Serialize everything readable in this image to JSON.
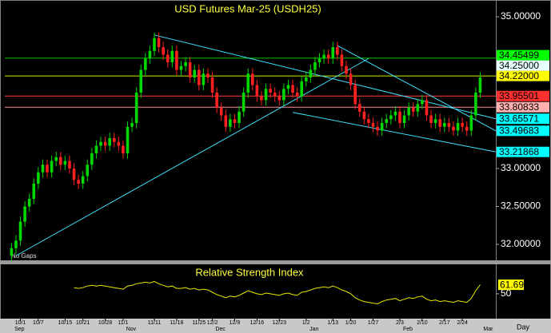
{
  "chart_data": [
    {
      "type": "candlestick",
      "title": "USD Futures Mar-25 (USDH25)",
      "note": "No Gaps",
      "period": "Day",
      "up_color": "#00d800",
      "down_color": "#ff2020",
      "xlim": [
        -1.5,
        108.5
      ],
      "ylim": [
        31.8,
        35.2
      ],
      "yticks": [
        {
          "value": 35,
          "label": "35.00000"
        },
        {
          "value": 33,
          "label": "33.00000"
        },
        {
          "value": 32.5,
          "label": "32.50000"
        },
        {
          "value": 32,
          "label": "32.00000"
        }
      ],
      "categories": [
        null,
        null,
        "10/1",
        null,
        null,
        null,
        "10/7",
        null,
        null,
        null,
        null,
        null,
        "10/15",
        null,
        null,
        null,
        "10/21",
        null,
        null,
        null,
        null,
        "10/28",
        null,
        null,
        null,
        "11/1",
        null,
        null,
        null,
        null,
        null,
        null,
        "11/11",
        null,
        null,
        null,
        null,
        "11/18",
        null,
        null,
        null,
        null,
        "11/25",
        null,
        null,
        "12/2",
        null,
        null,
        null,
        null,
        "12/9",
        null,
        null,
        null,
        null,
        "12/16",
        null,
        null,
        null,
        null,
        "12/23",
        null,
        null,
        null,
        null,
        null,
        "1/2",
        null,
        null,
        null,
        null,
        null,
        "1/13",
        null,
        null,
        null,
        "1/20",
        null,
        null,
        null,
        null,
        "1/27",
        null,
        null,
        null,
        null,
        null,
        "2/3",
        null,
        null,
        null,
        null,
        "2/10",
        null,
        null,
        null,
        null,
        "2/17",
        null,
        null,
        null,
        "2/24",
        null,
        null,
        null,
        null
      ],
      "month_labels": [
        "Sep",
        null,
        null,
        null,
        null,
        null,
        null,
        null,
        null,
        null,
        null,
        null,
        null,
        null,
        null,
        null,
        null,
        null,
        null,
        null,
        null,
        null,
        null,
        null,
        null,
        "Nov",
        null,
        null,
        null,
        null,
        null,
        null,
        null,
        null,
        null,
        null,
        null,
        null,
        null,
        null,
        null,
        null,
        null,
        null,
        null,
        "Dec",
        null,
        null,
        null,
        null,
        null,
        null,
        null,
        null,
        null,
        null,
        null,
        null,
        null,
        null,
        null,
        null,
        null,
        null,
        null,
        null,
        "Jan",
        null,
        null,
        null,
        null,
        null,
        null,
        null,
        null,
        null,
        null,
        null,
        null,
        null,
        null,
        null,
        null,
        null,
        null,
        null,
        null,
        "Feb",
        null,
        null,
        null,
        null,
        null,
        null,
        null,
        null,
        null,
        null,
        null,
        null,
        null,
        null,
        null,
        null,
        null,
        "Mar"
      ],
      "open": [
        31.85,
        31.95,
        32.05,
        32.3,
        32.5,
        32.6,
        32.8,
        32.95,
        33.05,
        32.95,
        33.1,
        33.15,
        33.05,
        33.1,
        33.0,
        32.85,
        32.8,
        32.9,
        33.05,
        33.2,
        33.3,
        33.35,
        33.3,
        33.4,
        33.35,
        33.3,
        33.2,
        33.55,
        33.6,
        34.0,
        34.3,
        34.45,
        34.55,
        34.72,
        34.6,
        34.5,
        34.4,
        34.55,
        34.3,
        34.35,
        34.4,
        34.2,
        34.3,
        34.1,
        34.25,
        34.2,
        34.0,
        33.8,
        33.7,
        33.55,
        33.65,
        33.6,
        33.75,
        34.0,
        34.25,
        34.1,
        33.95,
        33.9,
        34.05,
        34.0,
        33.95,
        33.9,
        34.05,
        34.1,
        34.0,
        33.95,
        34.15,
        34.2,
        34.3,
        34.4,
        34.45,
        34.5,
        34.45,
        34.6,
        34.5,
        34.35,
        34.25,
        34.1,
        33.85,
        33.75,
        33.65,
        33.6,
        33.55,
        33.5,
        33.6,
        33.65,
        33.7,
        33.75,
        33.6,
        33.7,
        33.8,
        33.75,
        33.85,
        33.9,
        33.7,
        33.6,
        33.65,
        33.55,
        33.6,
        33.55,
        33.5,
        33.6,
        33.55,
        33.5,
        33.7,
        34.0
      ],
      "high": [
        32.02,
        32.12,
        32.37,
        32.57,
        32.67,
        32.87,
        33.02,
        33.12,
        33.12,
        33.17,
        33.22,
        33.22,
        33.17,
        33.17,
        33.07,
        32.92,
        32.97,
        33.12,
        33.27,
        33.37,
        33.42,
        33.42,
        33.47,
        33.47,
        33.42,
        33.37,
        33.62,
        33.67,
        34.07,
        34.37,
        34.52,
        34.62,
        34.79,
        34.79,
        34.67,
        34.57,
        34.62,
        34.62,
        34.42,
        34.47,
        34.47,
        34.37,
        34.37,
        34.32,
        34.32,
        34.27,
        34.07,
        33.87,
        33.77,
        33.72,
        33.72,
        33.82,
        34.07,
        34.32,
        34.32,
        34.17,
        34.02,
        34.12,
        34.12,
        34.07,
        34.02,
        34.12,
        34.17,
        34.17,
        34.07,
        34.22,
        34.27,
        34.37,
        34.47,
        34.52,
        34.57,
        34.57,
        34.67,
        34.67,
        34.57,
        34.42,
        34.32,
        34.17,
        33.92,
        33.82,
        33.72,
        33.67,
        33.62,
        33.67,
        33.72,
        33.77,
        33.82,
        33.82,
        33.77,
        33.87,
        33.87,
        33.92,
        33.97,
        33.97,
        33.77,
        33.72,
        33.72,
        33.67,
        33.67,
        33.62,
        33.67,
        33.67,
        33.62,
        33.77,
        34.07,
        34.27
      ],
      "low": [
        31.78,
        31.88,
        31.98,
        32.23,
        32.43,
        32.53,
        32.73,
        32.88,
        32.88,
        32.88,
        33.03,
        32.98,
        32.98,
        32.93,
        32.78,
        32.73,
        32.73,
        32.83,
        32.98,
        33.13,
        33.23,
        33.23,
        33.23,
        33.28,
        33.23,
        33.13,
        33.13,
        33.48,
        33.53,
        33.93,
        34.23,
        34.38,
        34.48,
        34.53,
        34.43,
        34.33,
        34.33,
        34.23,
        34.23,
        34.28,
        34.13,
        34.13,
        34.03,
        34.03,
        34.13,
        33.93,
        33.73,
        33.63,
        33.48,
        33.48,
        33.53,
        33.53,
        33.68,
        33.93,
        34.03,
        33.88,
        33.83,
        33.83,
        33.93,
        33.88,
        33.83,
        33.83,
        33.98,
        33.93,
        33.88,
        33.88,
        34.08,
        34.13,
        34.23,
        34.33,
        34.38,
        34.38,
        34.38,
        34.43,
        34.28,
        34.18,
        34.03,
        33.78,
        33.68,
        33.58,
        33.53,
        33.48,
        33.43,
        33.43,
        33.53,
        33.58,
        33.63,
        33.53,
        33.53,
        33.63,
        33.68,
        33.68,
        33.78,
        33.63,
        33.53,
        33.53,
        33.48,
        33.48,
        33.48,
        33.43,
        33.43,
        33.48,
        33.43,
        33.43,
        33.63,
        33.93
      ],
      "close": [
        31.95,
        32.05,
        32.3,
        32.5,
        32.6,
        32.8,
        32.95,
        33.05,
        32.95,
        33.1,
        33.15,
        33.05,
        33.1,
        33.0,
        32.85,
        32.8,
        32.9,
        33.05,
        33.2,
        33.3,
        33.35,
        33.3,
        33.4,
        33.35,
        33.3,
        33.2,
        33.55,
        33.6,
        34.0,
        34.3,
        34.45,
        34.55,
        34.72,
        34.6,
        34.5,
        34.4,
        34.55,
        34.3,
        34.35,
        34.4,
        34.2,
        34.3,
        34.1,
        34.25,
        34.2,
        34.0,
        33.8,
        33.7,
        33.55,
        33.65,
        33.6,
        33.75,
        34.0,
        34.25,
        34.1,
        33.95,
        33.9,
        34.05,
        34.0,
        33.95,
        33.9,
        34.05,
        34.1,
        34.0,
        33.95,
        34.15,
        34.2,
        34.3,
        34.4,
        34.45,
        34.5,
        34.45,
        34.6,
        34.5,
        34.35,
        34.25,
        34.1,
        33.85,
        33.75,
        33.65,
        33.6,
        33.55,
        33.5,
        33.6,
        33.65,
        33.7,
        33.75,
        33.6,
        33.7,
        33.8,
        33.75,
        33.85,
        33.9,
        33.7,
        33.6,
        33.65,
        33.55,
        33.6,
        33.55,
        33.5,
        33.6,
        33.55,
        33.5,
        33.7,
        34.0,
        34.2
      ],
      "levels": [
        {
          "value": 34.45499,
          "label": "34.45499",
          "color": "#00c000",
          "box": "#00ff00"
        },
        {
          "value": 34.25,
          "label": "34.25000",
          "box": "#e8ffff"
        },
        {
          "value": 34.22,
          "label": "34.22000",
          "color": "#c8f000",
          "box": "#ffff00"
        },
        {
          "value": 33.95501,
          "label": "33.95501",
          "color": "#ff4040",
          "box": "#ff3030"
        },
        {
          "value": 33.80833,
          "label": "33.80833",
          "color": "#ff9090",
          "box": "#ffb0b0"
        }
      ],
      "trendlines": [
        {
          "color": "#40e0ff",
          "points": [
            [
              1,
              31.85
            ],
            [
              80,
              34.45
            ]
          ]
        },
        {
          "color": "#40e0ff",
          "points": [
            [
              32,
              34.76
            ],
            [
              108.5,
              33.65571
            ]
          ],
          "label": "33.65571"
        },
        {
          "color": "#40e0ff",
          "points": [
            [
              73,
              34.62
            ],
            [
              108.5,
              33.49683
            ]
          ],
          "label": "33.49683"
        },
        {
          "color": "#40e0ff",
          "points": [
            [
              63,
              33.74
            ],
            [
              108.5,
              33.21868
            ]
          ],
          "label": "33.21868"
        }
      ]
    },
    {
      "type": "line",
      "title": "Relative Strength Index",
      "color": "#e8e800",
      "ylim": [
        20,
        85
      ],
      "yticks": [
        50
      ],
      "values": [
        null,
        null,
        null,
        null,
        null,
        null,
        null,
        null,
        null,
        null,
        null,
        null,
        null,
        null,
        58,
        57,
        58,
        60,
        61,
        60,
        61,
        60,
        59,
        58,
        57,
        56,
        60,
        61,
        63,
        64,
        65,
        64,
        66,
        63,
        61,
        59,
        60,
        57,
        57,
        58,
        56,
        57,
        55,
        56,
        55,
        52,
        49,
        47,
        45,
        47,
        46,
        48,
        51,
        54,
        52,
        50,
        49,
        51,
        50,
        49,
        48,
        50,
        51,
        49,
        48,
        52,
        53,
        55,
        57,
        58,
        59,
        58,
        60,
        58,
        55,
        53,
        50,
        45,
        42,
        40,
        39,
        38,
        37,
        40,
        42,
        43,
        44,
        41,
        43,
        45,
        44,
        46,
        47,
        43,
        41,
        42,
        40,
        41,
        40,
        39,
        41,
        40,
        39,
        44,
        54,
        61.69
      ]
    }
  ]
}
